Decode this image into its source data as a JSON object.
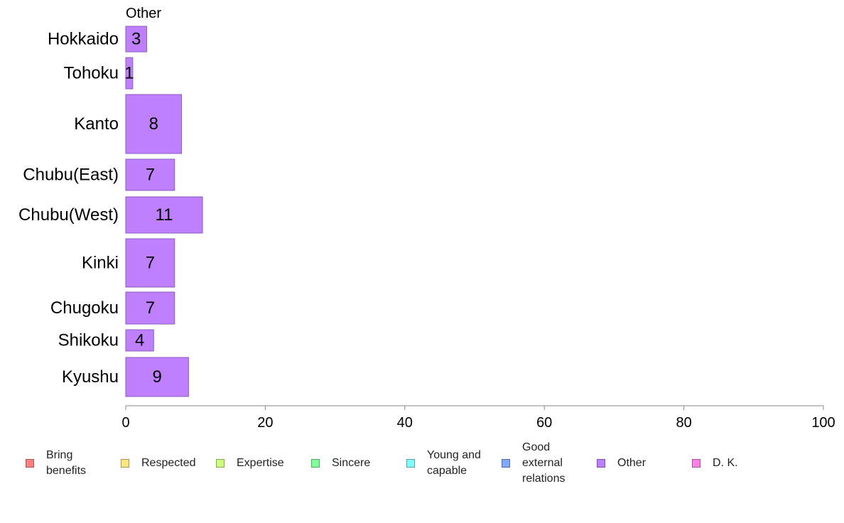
{
  "chart_data": {
    "type": "bar",
    "orientation": "horizontal",
    "title": "Other",
    "categories": [
      "Hokkaido",
      "Tohoku",
      "Kanto",
      "Chubu(East)",
      "Chubu(West)",
      "Kinki",
      "Chugoku",
      "Shikoku",
      "Kyushu"
    ],
    "series": [
      {
        "name": "Other",
        "color": "#BF80FF",
        "values": [
          3,
          1,
          8,
          7,
          11,
          7,
          7,
          4,
          9
        ]
      }
    ],
    "data_labels": [
      "3",
      "1",
      "8",
      "7",
      "11",
      "7",
      "7",
      "4",
      "9"
    ],
    "xlim": [
      0,
      100
    ],
    "xticks": [
      "0",
      "20",
      "40",
      "60",
      "80",
      "100"
    ],
    "grid": false,
    "legend_position": "bottom"
  },
  "legend": {
    "items": [
      {
        "label": "Bring\nbenefits",
        "color": "#FF8080"
      },
      {
        "label": "Respected",
        "color": "#FFE680"
      },
      {
        "label": "Expertise",
        "color": "#CCFF80"
      },
      {
        "label": "Sincere",
        "color": "#80FF99"
      },
      {
        "label": "Young and\ncapable",
        "color": "#80FFFF"
      },
      {
        "label": "Good\nexternal\nrelations",
        "color": "#80A8FF"
      },
      {
        "label": "Other",
        "color": "#BF80FF"
      },
      {
        "label": "D. K.",
        "color": "#FF80E6"
      }
    ]
  }
}
